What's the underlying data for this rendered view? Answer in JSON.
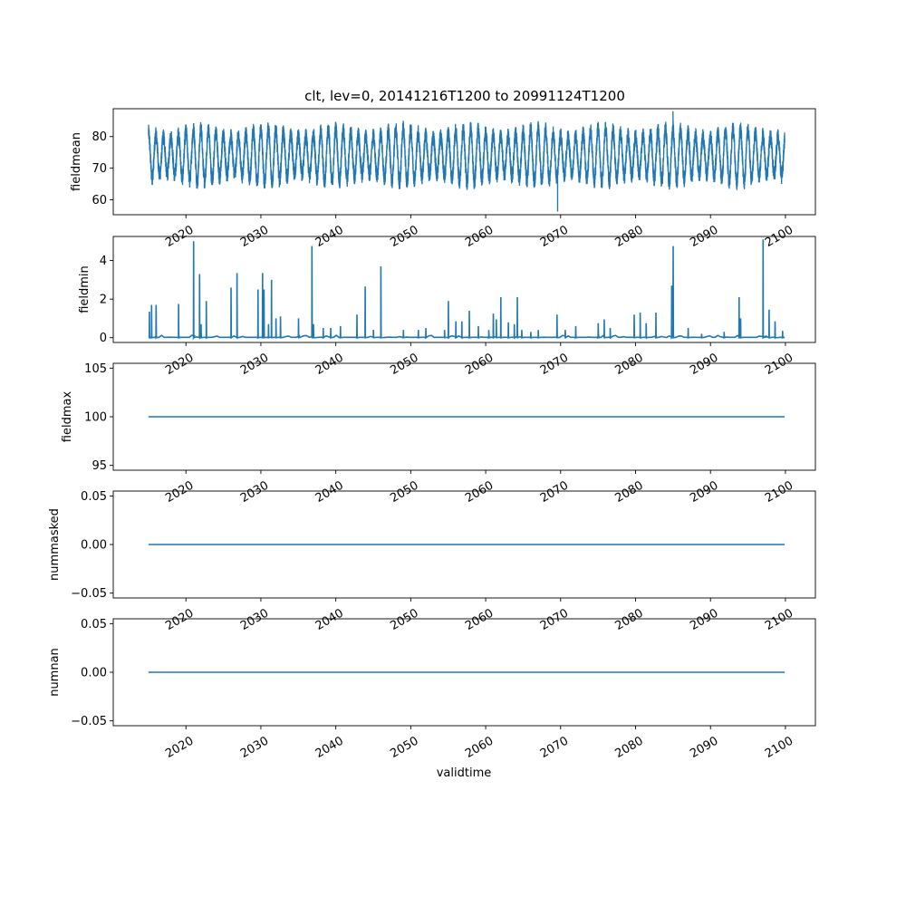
{
  "chart_data": {
    "type": "line",
    "title": "clt, lev=0, 20141216T1200 to 20991124T1200",
    "xlabel": "validtime",
    "xlim": [
      2010.3,
      2104.0
    ],
    "x_ticks": [
      2020,
      2030,
      2040,
      2050,
      2060,
      2070,
      2080,
      2090,
      2100
    ],
    "x_range": [
      2015.0,
      2099.9
    ],
    "line_color": "#1f77b4",
    "panels": [
      {
        "ylabel": "fieldmean",
        "ylim": [
          55.3,
          88.8
        ],
        "y_ticks": [
          60,
          70,
          80
        ],
        "y_tick_labels": [
          "60",
          "70",
          "80"
        ],
        "kind": "seasonal",
        "mean": 74,
        "amplitude": 8.5,
        "noise": 2.5,
        "peak_high": 88,
        "low_min": 56.3,
        "low_min_year": 2069.6
      },
      {
        "ylabel": "fieldmin",
        "ylim": [
          -0.25,
          5.25
        ],
        "y_ticks": [
          0,
          2,
          4
        ],
        "y_tick_labels": [
          "0",
          "2",
          "4"
        ],
        "kind": "spikes",
        "spikes": [
          [
            2015.1,
            1.35
          ],
          [
            2015.4,
            1.7
          ],
          [
            2016.0,
            1.7
          ],
          [
            2019.0,
            1.75
          ],
          [
            2021.0,
            5.0
          ],
          [
            2021.8,
            3.3
          ],
          [
            2022.0,
            0.7
          ],
          [
            2022.7,
            1.9
          ],
          [
            2026.0,
            2.6
          ],
          [
            2026.8,
            3.35
          ],
          [
            2029.6,
            2.5
          ],
          [
            2030.2,
            3.35
          ],
          [
            2030.4,
            2.5
          ],
          [
            2031.0,
            0.7
          ],
          [
            2031.4,
            3.0
          ],
          [
            2032.0,
            1.0
          ],
          [
            2032.6,
            1.1
          ],
          [
            2035.0,
            1.0
          ],
          [
            2036.8,
            4.75
          ],
          [
            2037.0,
            0.7
          ],
          [
            2038.3,
            0.5
          ],
          [
            2039.3,
            0.5
          ],
          [
            2040.6,
            0.6
          ],
          [
            2042.8,
            1.2
          ],
          [
            2043.9,
            2.65
          ],
          [
            2045.0,
            0.4
          ],
          [
            2046.0,
            3.7
          ],
          [
            2049.0,
            0.4
          ],
          [
            2051.0,
            0.4
          ],
          [
            2052.0,
            0.5
          ],
          [
            2054.5,
            0.4
          ],
          [
            2055.0,
            1.9
          ],
          [
            2056.0,
            0.85
          ],
          [
            2056.8,
            0.85
          ],
          [
            2057.8,
            1.4
          ],
          [
            2059.0,
            0.6
          ],
          [
            2060.4,
            0.4
          ],
          [
            2061.0,
            1.25
          ],
          [
            2061.4,
            0.95
          ],
          [
            2062.0,
            2.1
          ],
          [
            2063.0,
            0.8
          ],
          [
            2063.8,
            0.7
          ],
          [
            2064.2,
            2.1
          ],
          [
            2064.8,
            0.4
          ],
          [
            2066.0,
            0.3
          ],
          [
            2067.0,
            0.4
          ],
          [
            2069.5,
            1.2
          ],
          [
            2070.6,
            0.4
          ],
          [
            2072.0,
            0.6
          ],
          [
            2075.0,
            0.75
          ],
          [
            2075.8,
            0.95
          ],
          [
            2076.6,
            0.5
          ],
          [
            2079.8,
            1.2
          ],
          [
            2080.6,
            1.3
          ],
          [
            2081.4,
            0.75
          ],
          [
            2082.7,
            1.3
          ],
          [
            2084.8,
            2.7
          ],
          [
            2085.0,
            4.75
          ],
          [
            2087.0,
            0.5
          ],
          [
            2088.8,
            0.2
          ],
          [
            2091.8,
            0.3
          ],
          [
            2093.8,
            2.1
          ],
          [
            2094.0,
            1.0
          ],
          [
            2097.0,
            5.1
          ],
          [
            2097.8,
            1.45
          ],
          [
            2098.6,
            0.85
          ],
          [
            2099.6,
            0.35
          ]
        ]
      },
      {
        "ylabel": "fieldmax",
        "ylim": [
          94.5,
          105.5
        ],
        "y_ticks": [
          95,
          100,
          105
        ],
        "y_tick_labels": [
          "95",
          "100",
          "105"
        ],
        "kind": "constant",
        "value": 100
      },
      {
        "ylabel": "nummasked",
        "ylim": [
          -0.055,
          0.055
        ],
        "y_ticks": [
          -0.05,
          0.0,
          0.05
        ],
        "y_tick_labels": [
          "−0.05",
          "0.00",
          "0.05"
        ],
        "kind": "constant",
        "value": 0
      },
      {
        "ylabel": "numnan",
        "ylim": [
          -0.055,
          0.055
        ],
        "y_ticks": [
          -0.05,
          0.0,
          0.05
        ],
        "y_tick_labels": [
          "−0.05",
          "0.00",
          "0.05"
        ],
        "kind": "constant",
        "value": 0
      }
    ]
  }
}
